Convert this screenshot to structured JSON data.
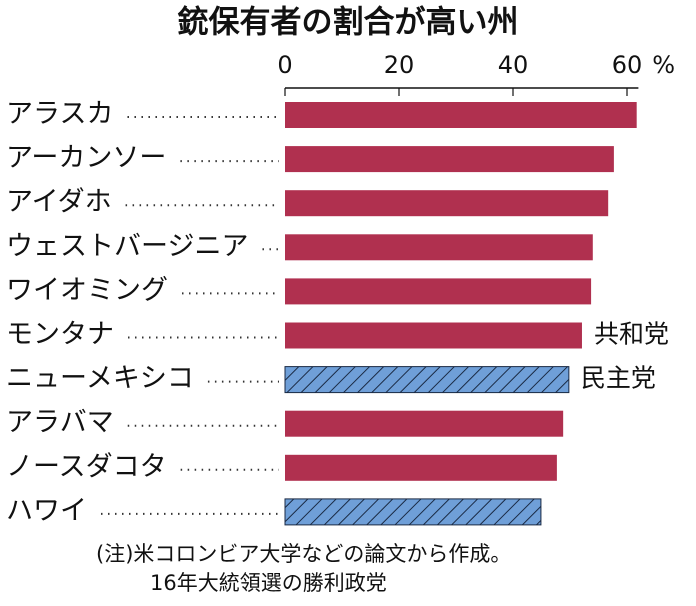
{
  "chart_data": {
    "type": "bar",
    "orientation": "horizontal",
    "title": "銃保有者の割合が高い州",
    "unit": "%",
    "categories": [
      "アラスカ",
      "アーカンソー",
      "アイダホ",
      "ウェストバージニア",
      "ワイオミング",
      "モンタナ",
      "ニューメキシコ",
      "アラバマ",
      "ノースダコタ",
      "ハワイ"
    ],
    "series": [
      {
        "name": "共和党",
        "color": "#b0304f",
        "values": [
          61.7,
          57.7,
          56.7,
          54.0,
          53.7,
          52.1,
          null,
          48.8,
          47.7,
          null
        ]
      },
      {
        "name": "民主党",
        "color": "#6f9fd8",
        "hatch": true,
        "values": [
          null,
          null,
          null,
          null,
          null,
          null,
          49.8,
          null,
          null,
          44.9
        ]
      }
    ],
    "xlim": [
      0,
      62
    ],
    "xticks": [
      0,
      20,
      40,
      60
    ],
    "notes": [
      "(注)米コロンビア大学などの論文から作成。",
      "16年大統領選の勝利政党"
    ]
  }
}
